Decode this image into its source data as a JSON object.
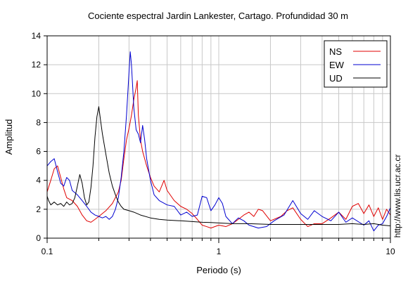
{
  "chart_data": {
    "type": "line",
    "title": "Cociente espectral Jardin Lankester, Cartago. Profundidad 30 m",
    "xlabel": "Periodo (s)",
    "ylabel": "Amplitud",
    "xscale": "log",
    "xlim": [
      0.1,
      10
    ],
    "ylim": [
      0,
      14
    ],
    "x_ticks": [
      0.1,
      1,
      10
    ],
    "x_tick_labels": [
      "0.1",
      "1",
      "10"
    ],
    "y_ticks": [
      0,
      2,
      4,
      6,
      8,
      10,
      12,
      14
    ],
    "y_tick_labels": [
      "0",
      "2",
      "4",
      "6",
      "8",
      "10",
      "12",
      "14"
    ],
    "grid": true,
    "legend_position": "top-right",
    "side_note": "http://www.lis.ucr.ac.cr",
    "series": [
      {
        "name": "NS",
        "color": "#e00000",
        "points": [
          [
            0.1,
            3.2
          ],
          [
            0.105,
            4.0
          ],
          [
            0.11,
            4.8
          ],
          [
            0.115,
            5.0
          ],
          [
            0.12,
            4.2
          ],
          [
            0.125,
            3.4
          ],
          [
            0.13,
            2.8
          ],
          [
            0.14,
            2.6
          ],
          [
            0.15,
            2.2
          ],
          [
            0.16,
            1.6
          ],
          [
            0.17,
            1.2
          ],
          [
            0.18,
            1.1
          ],
          [
            0.19,
            1.3
          ],
          [
            0.2,
            1.5
          ],
          [
            0.22,
            1.9
          ],
          [
            0.24,
            2.4
          ],
          [
            0.26,
            3.2
          ],
          [
            0.27,
            4.0
          ],
          [
            0.28,
            5.5
          ],
          [
            0.29,
            6.8
          ],
          [
            0.3,
            7.6
          ],
          [
            0.31,
            8.5
          ],
          [
            0.32,
            9.6
          ],
          [
            0.33,
            10.4
          ],
          [
            0.335,
            10.9
          ],
          [
            0.34,
            8.5
          ],
          [
            0.35,
            6.8
          ],
          [
            0.36,
            6.0
          ],
          [
            0.38,
            5.0
          ],
          [
            0.4,
            4.2
          ],
          [
            0.42,
            3.6
          ],
          [
            0.45,
            3.2
          ],
          [
            0.48,
            4.0
          ],
          [
            0.5,
            3.3
          ],
          [
            0.55,
            2.6
          ],
          [
            0.6,
            2.2
          ],
          [
            0.65,
            2.0
          ],
          [
            0.7,
            1.7
          ],
          [
            0.75,
            1.3
          ],
          [
            0.8,
            0.9
          ],
          [
            0.85,
            0.8
          ],
          [
            0.9,
            0.7
          ],
          [
            1.0,
            0.9
          ],
          [
            1.1,
            0.8
          ],
          [
            1.2,
            1.0
          ],
          [
            1.3,
            1.3
          ],
          [
            1.4,
            1.6
          ],
          [
            1.5,
            1.8
          ],
          [
            1.6,
            1.5
          ],
          [
            1.7,
            2.0
          ],
          [
            1.8,
            1.9
          ],
          [
            2.0,
            1.2
          ],
          [
            2.3,
            1.5
          ],
          [
            2.5,
            1.9
          ],
          [
            2.7,
            2.1
          ],
          [
            3.0,
            1.3
          ],
          [
            3.3,
            0.8
          ],
          [
            3.6,
            1.0
          ],
          [
            4.0,
            1.0
          ],
          [
            4.5,
            1.4
          ],
          [
            5.0,
            1.8
          ],
          [
            5.5,
            1.3
          ],
          [
            6.0,
            2.2
          ],
          [
            6.5,
            2.4
          ],
          [
            7.0,
            1.7
          ],
          [
            7.5,
            2.3
          ],
          [
            8.0,
            1.5
          ],
          [
            8.5,
            2.1
          ],
          [
            9.0,
            1.3
          ],
          [
            9.5,
            2.0
          ],
          [
            10.0,
            1.6
          ]
        ]
      },
      {
        "name": "EW",
        "color": "#0000d0",
        "points": [
          [
            0.1,
            5.0
          ],
          [
            0.105,
            5.3
          ],
          [
            0.11,
            5.5
          ],
          [
            0.115,
            4.6
          ],
          [
            0.12,
            3.8
          ],
          [
            0.125,
            3.6
          ],
          [
            0.13,
            4.2
          ],
          [
            0.135,
            4.0
          ],
          [
            0.14,
            3.3
          ],
          [
            0.15,
            3.0
          ],
          [
            0.16,
            2.6
          ],
          [
            0.17,
            2.2
          ],
          [
            0.18,
            1.8
          ],
          [
            0.19,
            1.6
          ],
          [
            0.2,
            1.5
          ],
          [
            0.21,
            1.4
          ],
          [
            0.22,
            1.5
          ],
          [
            0.23,
            1.3
          ],
          [
            0.24,
            1.5
          ],
          [
            0.25,
            2.0
          ],
          [
            0.26,
            2.8
          ],
          [
            0.27,
            4.2
          ],
          [
            0.28,
            6.0
          ],
          [
            0.29,
            8.5
          ],
          [
            0.3,
            11.5
          ],
          [
            0.305,
            12.9
          ],
          [
            0.31,
            12.0
          ],
          [
            0.32,
            9.0
          ],
          [
            0.33,
            7.5
          ],
          [
            0.34,
            7.2
          ],
          [
            0.35,
            6.6
          ],
          [
            0.36,
            7.8
          ],
          [
            0.37,
            6.8
          ],
          [
            0.38,
            5.5
          ],
          [
            0.4,
            4.0
          ],
          [
            0.42,
            3.0
          ],
          [
            0.45,
            2.6
          ],
          [
            0.5,
            2.3
          ],
          [
            0.55,
            2.2
          ],
          [
            0.6,
            1.6
          ],
          [
            0.65,
            1.8
          ],
          [
            0.7,
            1.5
          ],
          [
            0.75,
            1.6
          ],
          [
            0.8,
            2.9
          ],
          [
            0.85,
            2.8
          ],
          [
            0.9,
            1.9
          ],
          [
            0.95,
            2.3
          ],
          [
            1.0,
            2.8
          ],
          [
            1.05,
            2.4
          ],
          [
            1.1,
            1.5
          ],
          [
            1.2,
            1.0
          ],
          [
            1.3,
            1.4
          ],
          [
            1.4,
            1.2
          ],
          [
            1.5,
            0.9
          ],
          [
            1.7,
            0.7
          ],
          [
            1.9,
            0.8
          ],
          [
            2.1,
            1.2
          ],
          [
            2.4,
            1.6
          ],
          [
            2.7,
            2.6
          ],
          [
            3.0,
            1.7
          ],
          [
            3.3,
            1.3
          ],
          [
            3.6,
            1.9
          ],
          [
            4.0,
            1.5
          ],
          [
            4.5,
            1.2
          ],
          [
            5.0,
            1.8
          ],
          [
            5.5,
            1.1
          ],
          [
            6.0,
            1.4
          ],
          [
            7.0,
            0.9
          ],
          [
            7.5,
            1.2
          ],
          [
            8.0,
            0.5
          ],
          [
            8.5,
            0.9
          ],
          [
            9.0,
            1.0
          ],
          [
            9.5,
            1.5
          ],
          [
            10.0,
            2.1
          ]
        ]
      },
      {
        "name": "UD",
        "color": "#000000",
        "points": [
          [
            0.1,
            2.9
          ],
          [
            0.102,
            2.6
          ],
          [
            0.105,
            2.3
          ],
          [
            0.11,
            2.5
          ],
          [
            0.115,
            2.3
          ],
          [
            0.12,
            2.4
          ],
          [
            0.125,
            2.2
          ],
          [
            0.13,
            2.5
          ],
          [
            0.135,
            2.3
          ],
          [
            0.14,
            2.4
          ],
          [
            0.145,
            2.8
          ],
          [
            0.15,
            3.6
          ],
          [
            0.155,
            4.4
          ],
          [
            0.16,
            3.8
          ],
          [
            0.165,
            2.8
          ],
          [
            0.17,
            2.3
          ],
          [
            0.175,
            2.5
          ],
          [
            0.18,
            3.5
          ],
          [
            0.185,
            5.0
          ],
          [
            0.19,
            7.0
          ],
          [
            0.195,
            8.4
          ],
          [
            0.2,
            9.1
          ],
          [
            0.205,
            8.1
          ],
          [
            0.21,
            7.2
          ],
          [
            0.22,
            5.8
          ],
          [
            0.23,
            4.5
          ],
          [
            0.24,
            3.6
          ],
          [
            0.25,
            3.0
          ],
          [
            0.26,
            2.5
          ],
          [
            0.27,
            2.2
          ],
          [
            0.28,
            2.0
          ],
          [
            0.3,
            1.9
          ],
          [
            0.32,
            1.8
          ],
          [
            0.35,
            1.6
          ],
          [
            0.4,
            1.4
          ],
          [
            0.45,
            1.3
          ],
          [
            0.5,
            1.25
          ],
          [
            0.6,
            1.2
          ],
          [
            0.7,
            1.15
          ],
          [
            0.8,
            1.1
          ],
          [
            0.9,
            1.08
          ],
          [
            1.0,
            1.05
          ],
          [
            1.2,
            1.0
          ],
          [
            1.5,
            1.0
          ],
          [
            2.0,
            0.95
          ],
          [
            2.5,
            0.95
          ],
          [
            3.0,
            0.95
          ],
          [
            4.0,
            0.95
          ],
          [
            5.0,
            0.95
          ],
          [
            6.0,
            1.0
          ],
          [
            7.0,
            0.95
          ],
          [
            8.0,
            1.0
          ],
          [
            9.0,
            0.9
          ],
          [
            10.0,
            0.85
          ]
        ]
      }
    ]
  }
}
